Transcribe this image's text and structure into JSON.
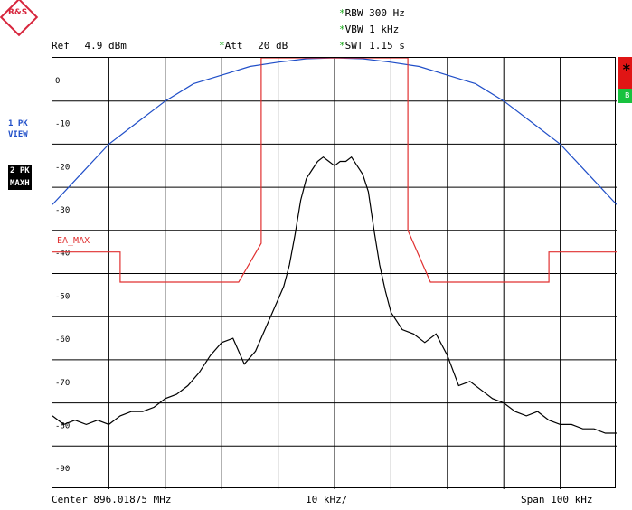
{
  "header": {
    "ref_label": "Ref",
    "ref_value": "4.9 dBm",
    "att_star": "*",
    "att_label": "Att",
    "att_value": "20 dB",
    "rbw_star": "*",
    "rbw_text": "RBW 300 Hz",
    "vbw_star": "*",
    "vbw_text": "VBW 1 kHz",
    "swt_star": "*",
    "swt_text": "SWT 1.15 s"
  },
  "side": {
    "trace1_line1": "1 PK",
    "trace1_line2": "VIEW",
    "trace2_line1": "2 PK",
    "trace2_line2": "MAXH"
  },
  "right_marks": {
    "star": "*",
    "green": "B"
  },
  "limit_line_label": "EA_MAX",
  "y_ticks": [
    "0",
    "-10",
    "-20",
    "-30",
    "-40",
    "-50",
    "-60",
    "-70",
    "-80",
    "-90"
  ],
  "footer": {
    "center": "Center 896.01875 MHz",
    "div": "10 kHz/",
    "span": "Span 100 kHz"
  },
  "colors": {
    "trace_max": "#000000",
    "trace_view": "#1f4ec8",
    "limit_line": "#e03030",
    "grid": "#000000"
  },
  "chart_data": {
    "type": "line",
    "x_unit": "kHz offset",
    "xlim": [
      -50,
      50
    ],
    "ylim": [
      -95,
      5
    ],
    "series": [
      {
        "values": [
          [
            -50,
            -78
          ],
          [
            -48,
            -80
          ],
          [
            -46,
            -79
          ],
          [
            -44,
            -80
          ],
          [
            -42,
            -79
          ],
          [
            -40,
            -80
          ],
          [
            -38,
            -78
          ],
          [
            -36,
            -77
          ],
          [
            -34,
            -77
          ],
          [
            -32,
            -76
          ],
          [
            -30,
            -74
          ],
          [
            -28,
            -73
          ],
          [
            -26,
            -71
          ],
          [
            -24,
            -68
          ],
          [
            -22,
            -64
          ],
          [
            -20,
            -61
          ],
          [
            -18,
            -60
          ],
          [
            -16,
            -66
          ],
          [
            -14,
            -63
          ],
          [
            -12,
            -57
          ],
          [
            -10,
            -51
          ],
          [
            -9,
            -48
          ],
          [
            -8,
            -43
          ],
          [
            -7,
            -36
          ],
          [
            -6,
            -28
          ],
          [
            -5,
            -23
          ],
          [
            -4,
            -21
          ],
          [
            -3,
            -19
          ],
          [
            -2,
            -18
          ],
          [
            -1,
            -19
          ],
          [
            0,
            -20
          ],
          [
            1,
            -19
          ],
          [
            2,
            -19
          ],
          [
            3,
            -18
          ],
          [
            4,
            -20
          ],
          [
            5,
            -22
          ],
          [
            6,
            -26
          ],
          [
            7,
            -35
          ],
          [
            8,
            -43
          ],
          [
            9,
            -49
          ],
          [
            10,
            -54
          ],
          [
            12,
            -58
          ],
          [
            14,
            -59
          ],
          [
            16,
            -61
          ],
          [
            18,
            -59
          ],
          [
            20,
            -64
          ],
          [
            22,
            -71
          ],
          [
            24,
            -70
          ],
          [
            26,
            -72
          ],
          [
            28,
            -74
          ],
          [
            30,
            -75
          ],
          [
            32,
            -77
          ],
          [
            34,
            -78
          ],
          [
            36,
            -77
          ],
          [
            38,
            -79
          ],
          [
            40,
            -80
          ],
          [
            42,
            -80
          ],
          [
            44,
            -81
          ],
          [
            46,
            -81
          ],
          [
            48,
            -82
          ],
          [
            50,
            -82
          ]
        ]
      },
      {
        "values": [
          [
            -50,
            -29
          ],
          [
            -45,
            -22
          ],
          [
            -40,
            -15
          ],
          [
            -35,
            -10
          ],
          [
            -30,
            -5
          ],
          [
            -25,
            -1
          ],
          [
            -20,
            1
          ],
          [
            -15,
            3
          ],
          [
            -10,
            4
          ],
          [
            -5,
            4.8
          ],
          [
            0,
            5
          ],
          [
            5,
            4.8
          ],
          [
            10,
            4
          ],
          [
            15,
            3
          ],
          [
            20,
            1
          ],
          [
            25,
            -1
          ],
          [
            30,
            -5
          ],
          [
            35,
            -10
          ],
          [
            40,
            -15
          ],
          [
            45,
            -22
          ],
          [
            50,
            -29
          ]
        ]
      },
      {
        "values": [
          [
            -50,
            -40
          ],
          [
            -38,
            -40
          ],
          [
            -38,
            -47
          ],
          [
            -17,
            -47
          ],
          [
            -13,
            -38
          ],
          [
            -13,
            -35
          ],
          [
            -13,
            5
          ],
          [
            13,
            5
          ],
          [
            13,
            -35
          ],
          [
            17,
            -47
          ],
          [
            38,
            -47
          ],
          [
            38,
            -40
          ],
          [
            50,
            -40
          ]
        ]
      }
    ]
  }
}
